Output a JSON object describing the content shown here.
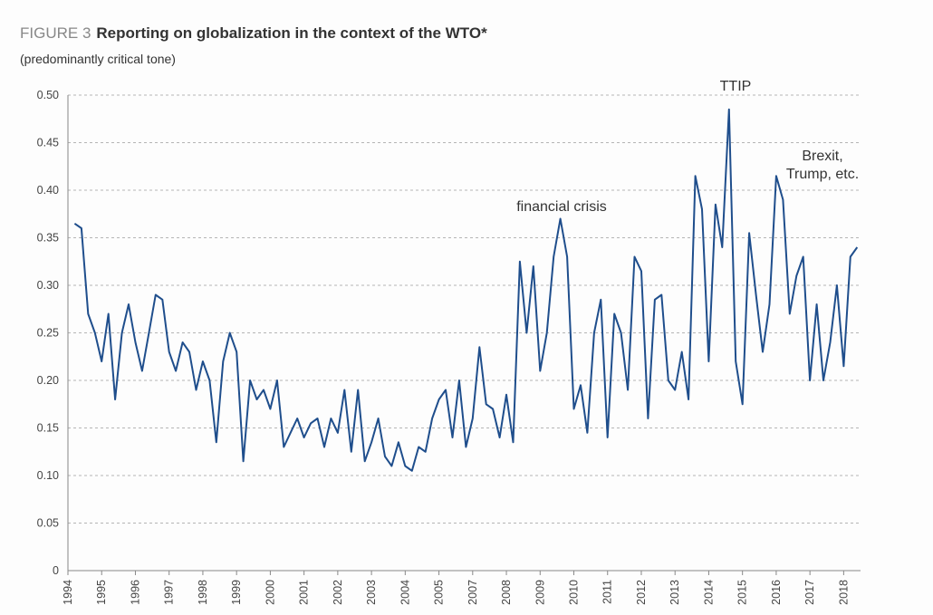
{
  "chart_data": {
    "type": "line",
    "figure_label": "FIGURE 3",
    "title": "Reporting on globalization in the context of the WTO*",
    "subtitle": "(predominantly critical tone)",
    "x": [
      1994.2,
      1994.4,
      1994.6,
      1994.8,
      1995.0,
      1995.2,
      1995.4,
      1995.6,
      1995.8,
      1996.0,
      1996.2,
      1996.4,
      1996.6,
      1996.8,
      1997.0,
      1997.2,
      1997.4,
      1997.6,
      1997.8,
      1998.0,
      1998.2,
      1998.4,
      1998.6,
      1998.8,
      1999.0,
      1999.2,
      1999.4,
      1999.6,
      1999.8,
      2000.0,
      2000.2,
      2000.4,
      2000.6,
      2000.8,
      2001.0,
      2001.2,
      2001.4,
      2001.6,
      2001.8,
      2002.0,
      2002.2,
      2002.4,
      2002.6,
      2002.8,
      2003.0,
      2003.2,
      2003.4,
      2003.6,
      2003.8,
      2004.0,
      2004.2,
      2004.4,
      2004.6,
      2004.8,
      2005.0,
      2005.4,
      2005.8,
      2006.2,
      2006.6,
      2007.0,
      2007.2,
      2007.4,
      2007.6,
      2007.8,
      2008.0,
      2008.2,
      2008.4,
      2008.6,
      2008.8,
      2009.0,
      2009.2,
      2009.4,
      2009.6,
      2009.8,
      2010.0,
      2010.2,
      2010.4,
      2010.6,
      2010.8,
      2011.0,
      2011.2,
      2011.4,
      2011.6,
      2011.8,
      2012.0,
      2012.2,
      2012.4,
      2012.6,
      2012.8,
      2013.0,
      2013.2,
      2013.4,
      2013.6,
      2013.8,
      2014.0,
      2014.2,
      2014.4,
      2014.6,
      2014.8,
      2015.0,
      2015.2,
      2015.4,
      2015.6,
      2015.8,
      2016.0,
      2016.2,
      2016.4,
      2016.6,
      2016.8,
      2017.0,
      2017.2,
      2017.4,
      2017.6,
      2017.8,
      2018.0,
      2018.2,
      2018.4
    ],
    "series": [
      {
        "color": "#1f4e8c",
        "values": [
          0.365,
          0.36,
          0.27,
          0.25,
          0.22,
          0.27,
          0.18,
          0.25,
          0.28,
          0.24,
          0.21,
          0.25,
          0.29,
          0.285,
          0.23,
          0.21,
          0.24,
          0.23,
          0.19,
          0.22,
          0.2,
          0.135,
          0.22,
          0.25,
          0.23,
          0.115,
          0.2,
          0.18,
          0.19,
          0.17,
          0.2,
          0.13,
          0.145,
          0.16,
          0.14,
          0.155,
          0.16,
          0.13,
          0.16,
          0.145,
          0.19,
          0.125,
          0.19,
          0.115,
          0.135,
          0.16,
          0.12,
          0.11,
          0.135,
          0.11,
          0.105,
          0.13,
          0.125,
          0.16,
          0.18,
          0.19,
          0.14,
          0.2,
          0.13,
          0.16,
          0.235,
          0.175,
          0.17,
          0.14,
          0.185,
          0.135,
          0.325,
          0.25,
          0.32,
          0.21,
          0.25,
          0.33,
          0.37,
          0.33,
          0.17,
          0.195,
          0.145,
          0.25,
          0.285,
          0.14,
          0.27,
          0.25,
          0.19,
          0.33,
          0.315,
          0.16,
          0.285,
          0.29,
          0.2,
          0.19,
          0.23,
          0.18,
          0.415,
          0.38,
          0.22,
          0.385,
          0.34,
          0.485,
          0.22,
          0.175,
          0.355,
          0.29,
          0.23,
          0.28,
          0.415,
          0.39,
          0.27,
          0.31,
          0.33,
          0.2,
          0.28,
          0.2,
          0.24,
          0.3,
          0.215,
          0.33,
          0.34
        ]
      }
    ],
    "xlim": [
      1994,
      2018.5
    ],
    "xticks": [
      1994,
      1995,
      1996,
      1997,
      1998,
      1999,
      2000,
      2001,
      2002,
      2003,
      2004,
      2005,
      2007,
      2008,
      2009,
      2010,
      2011,
      2012,
      2013,
      2014,
      2015,
      2016,
      2017,
      2018
    ],
    "ylim": [
      0,
      0.5
    ],
    "yticks": [
      0,
      0.05,
      {
        "value": 0.1,
        "label": "0.10"
      },
      0.15,
      {
        "value": 0.2,
        "label": "0.20"
      },
      0.25,
      {
        "value": 0.3,
        "label": "0.30"
      },
      0.35,
      {
        "value": 0.4,
        "label": "0.40"
      },
      0.45,
      {
        "value": 0.5,
        "label": "0.50"
      }
    ],
    "grid": true,
    "annotations": [
      {
        "lines": [
          "TTIP"
        ]
      },
      {
        "lines": [
          "financial crisis"
        ]
      },
      {
        "lines": [
          "Brexit,",
          "Trump, etc."
        ]
      }
    ]
  }
}
